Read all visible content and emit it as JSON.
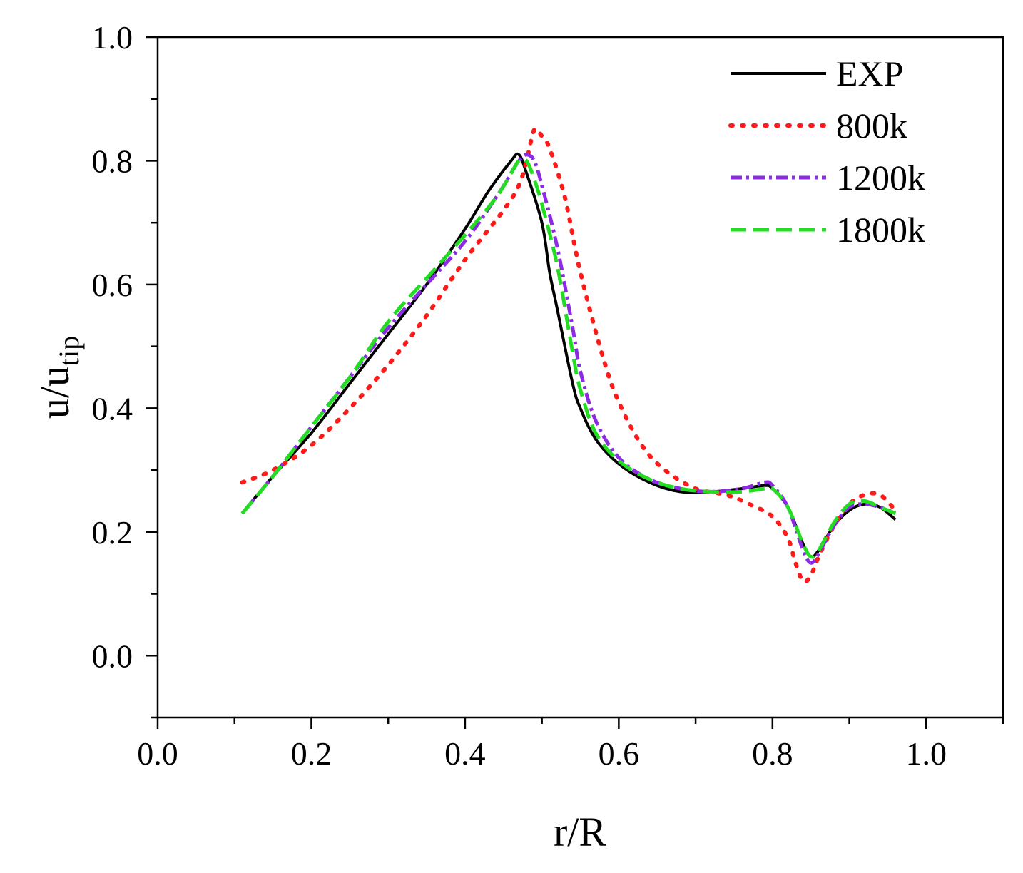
{
  "chart_data": {
    "type": "line",
    "title": "",
    "xlabel": "r/R",
    "ylabel": {
      "base": "u/u",
      "sub": "tip"
    },
    "xlim": [
      0.0,
      1.1
    ],
    "ylim": [
      -0.1,
      1.0
    ],
    "xticks": [
      0.0,
      0.2,
      0.4,
      0.6,
      0.8,
      1.0
    ],
    "xtick_labels": [
      "0.0",
      "0.2",
      "0.4",
      "0.6",
      "0.8",
      "1.0"
    ],
    "yticks": [
      0.0,
      0.2,
      0.4,
      0.6,
      0.8,
      1.0
    ],
    "ytick_labels": [
      "0.0",
      "0.2",
      "0.4",
      "0.6",
      "0.8",
      "1.0"
    ],
    "x_minor_step": 0.1,
    "y_minor_step": 0.1,
    "grid": false,
    "legend_position": "top-right",
    "series": [
      {
        "name": "EXP",
        "color": "#000000",
        "style": "solid",
        "x": [
          0.11,
          0.15,
          0.2,
          0.25,
          0.3,
          0.35,
          0.4,
          0.43,
          0.46,
          0.47,
          0.48,
          0.5,
          0.51,
          0.52,
          0.54,
          0.55,
          0.57,
          0.6,
          0.64,
          0.68,
          0.72,
          0.76,
          0.79,
          0.8,
          0.82,
          0.84,
          0.85,
          0.86,
          0.88,
          0.9,
          0.92,
          0.94,
          0.96
        ],
        "y": [
          0.23,
          0.29,
          0.36,
          0.44,
          0.52,
          0.6,
          0.69,
          0.75,
          0.8,
          0.81,
          0.78,
          0.7,
          0.62,
          0.56,
          0.44,
          0.4,
          0.35,
          0.31,
          0.28,
          0.265,
          0.265,
          0.27,
          0.275,
          0.27,
          0.24,
          0.18,
          0.16,
          0.17,
          0.21,
          0.235,
          0.245,
          0.24,
          0.22
        ]
      },
      {
        "name": "800k",
        "color": "#ff1a1a",
        "style": "dotted",
        "x": [
          0.11,
          0.15,
          0.2,
          0.25,
          0.3,
          0.35,
          0.4,
          0.45,
          0.47,
          0.48,
          0.49,
          0.5,
          0.51,
          0.53,
          0.55,
          0.58,
          0.6,
          0.63,
          0.66,
          0.7,
          0.74,
          0.77,
          0.8,
          0.82,
          0.83,
          0.84,
          0.85,
          0.86,
          0.88,
          0.9,
          0.92,
          0.94,
          0.96
        ],
        "y": [
          0.28,
          0.3,
          0.34,
          0.4,
          0.47,
          0.55,
          0.64,
          0.72,
          0.76,
          0.8,
          0.85,
          0.84,
          0.82,
          0.74,
          0.62,
          0.48,
          0.41,
          0.34,
          0.3,
          0.27,
          0.26,
          0.245,
          0.225,
          0.19,
          0.15,
          0.12,
          0.13,
          0.16,
          0.21,
          0.245,
          0.26,
          0.26,
          0.235
        ]
      },
      {
        "name": "1200k",
        "color": "#8b2be2",
        "style": "dashdot",
        "x": [
          0.11,
          0.15,
          0.2,
          0.25,
          0.3,
          0.35,
          0.4,
          0.44,
          0.46,
          0.47,
          0.48,
          0.49,
          0.5,
          0.52,
          0.54,
          0.55,
          0.57,
          0.6,
          0.64,
          0.68,
          0.72,
          0.76,
          0.79,
          0.8,
          0.82,
          0.84,
          0.85,
          0.86,
          0.88,
          0.9,
          0.92,
          0.94,
          0.96
        ],
        "y": [
          0.23,
          0.29,
          0.37,
          0.45,
          0.53,
          0.6,
          0.67,
          0.74,
          0.78,
          0.8,
          0.81,
          0.8,
          0.76,
          0.66,
          0.53,
          0.46,
          0.38,
          0.32,
          0.285,
          0.27,
          0.265,
          0.27,
          0.28,
          0.275,
          0.24,
          0.17,
          0.15,
          0.165,
          0.21,
          0.24,
          0.245,
          0.24,
          0.23
        ]
      },
      {
        "name": "1800k",
        "color": "#22dd22",
        "style": "dashed",
        "x": [
          0.11,
          0.15,
          0.2,
          0.25,
          0.3,
          0.35,
          0.4,
          0.44,
          0.46,
          0.47,
          0.48,
          0.49,
          0.5,
          0.52,
          0.54,
          0.55,
          0.57,
          0.6,
          0.64,
          0.68,
          0.72,
          0.76,
          0.79,
          0.8,
          0.82,
          0.84,
          0.85,
          0.86,
          0.88,
          0.9,
          0.92,
          0.94,
          0.96
        ],
        "y": [
          0.23,
          0.29,
          0.37,
          0.45,
          0.54,
          0.61,
          0.68,
          0.74,
          0.78,
          0.8,
          0.8,
          0.77,
          0.73,
          0.63,
          0.49,
          0.43,
          0.36,
          0.315,
          0.285,
          0.27,
          0.265,
          0.265,
          0.27,
          0.27,
          0.24,
          0.18,
          0.16,
          0.17,
          0.215,
          0.245,
          0.25,
          0.24,
          0.23
        ]
      }
    ]
  }
}
